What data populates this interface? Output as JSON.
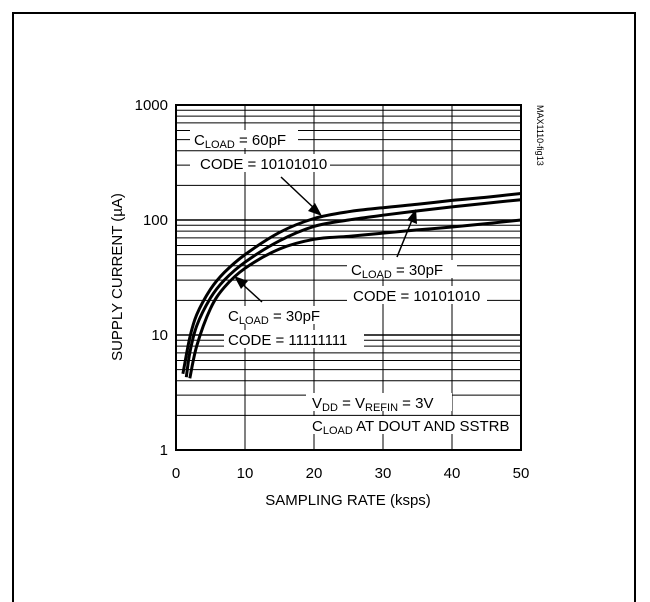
{
  "chart_data": {
    "type": "line",
    "xlabel": "SAMPLING RATE (ksps)",
    "ylabel": "SUPPLY CURRENT (µA)",
    "xlim": [
      0,
      50
    ],
    "ylim": [
      1,
      1000
    ],
    "y_scale": "log",
    "grid": true,
    "x_ticks": [
      "0",
      "10",
      "20",
      "30",
      "40",
      "50"
    ],
    "y_ticks": [
      "1",
      "10",
      "100",
      "1000"
    ],
    "series": [
      {
        "name_main": "C",
        "name_sub": "LOAD",
        "name_rest": " = 60pF",
        "code": "CODE = 10101010",
        "x": [
          1,
          2,
          3,
          5,
          7,
          10,
          15,
          20,
          25,
          30,
          35,
          40,
          45,
          50
        ],
        "y": [
          4.6,
          9.5,
          15,
          25,
          35,
          50,
          78,
          103,
          118,
          128,
          137,
          148,
          158,
          170
        ]
      },
      {
        "name_main": "C",
        "name_sub": "LOAD",
        "name_rest": " = 30pF",
        "code": "CODE = 10101010",
        "x": [
          1.5,
          2,
          3,
          5,
          7,
          10,
          15,
          20,
          25,
          30,
          35,
          40,
          45,
          50
        ],
        "y": [
          4.3,
          7,
          12,
          21,
          30,
          43,
          66,
          88,
          100,
          110,
          120,
          130,
          140,
          150
        ]
      },
      {
        "name_main": "C",
        "name_sub": "LOAD",
        "name_rest": " = 30pF",
        "code": "CODE = 11111111",
        "x": [
          2,
          3,
          5,
          7,
          10,
          15,
          20,
          25,
          30,
          35,
          40,
          45,
          50
        ],
        "y": [
          4.2,
          8,
          17,
          26,
          38,
          56,
          68,
          72,
          77,
          82,
          87,
          93,
          100
        ]
      }
    ],
    "conditions": {
      "line1": {
        "v": "V",
        "v_sub": "DD",
        "eq1": " = V",
        "ref_sub": "REFIN",
        "eq2": " = 3V"
      },
      "line2": {
        "c": "C",
        "c_sub": "LOAD",
        "rest": " AT DOUT AND SSTRB"
      }
    },
    "figure_id": "MAX1110-fig13"
  }
}
